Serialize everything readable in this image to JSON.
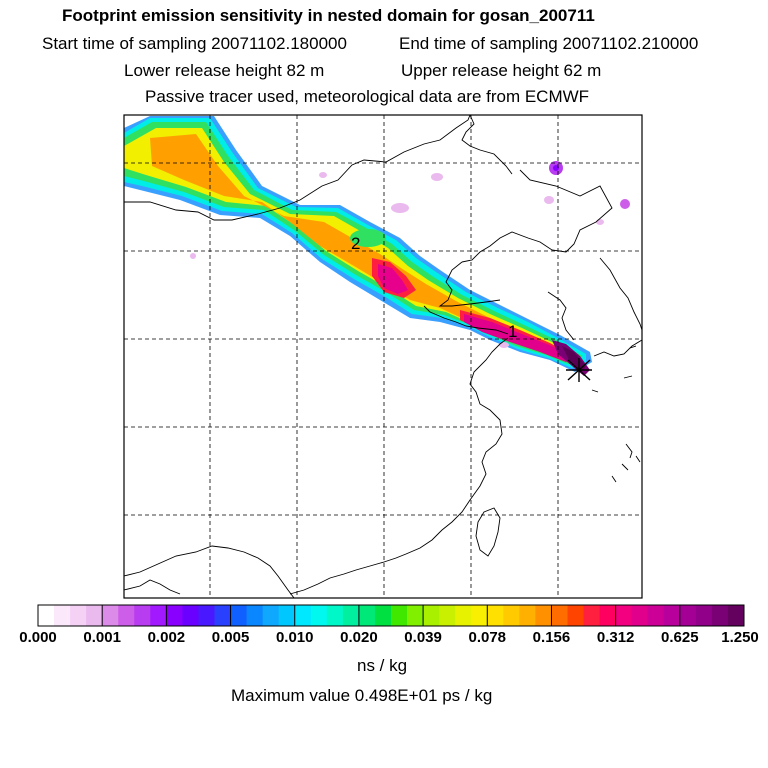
{
  "header": {
    "title": "Footprint emission sensitivity in nested domain for gosan_200711",
    "start_time": "Start time of sampling 20071102.180000",
    "end_time": "End time of sampling 20071102.210000",
    "lower_height": "Lower release height   82 m",
    "upper_height": "Upper release height   62 m",
    "tracer": "Passive tracer used, meteorological data are from ECMWF"
  },
  "map": {
    "point_labels": [
      "2",
      "1"
    ],
    "receptor_marker": "receptor-cross"
  },
  "colorbar": {
    "ticks": [
      "0.000",
      "0.001",
      "0.002",
      "0.005",
      "0.010",
      "0.020",
      "0.039",
      "0.078",
      "0.156",
      "0.312",
      "0.625",
      "1.250"
    ],
    "colors": [
      "#ffffff",
      "#fbe8fb",
      "#f5d2f5",
      "#eab9ee",
      "#dc8be8",
      "#cc5ee9",
      "#b83cf0",
      "#a218ff",
      "#8a00ff",
      "#6a00ff",
      "#4a18ff",
      "#2a40ff",
      "#1060ff",
      "#0a86ff",
      "#10a8ff",
      "#00c8ff",
      "#00e8ff",
      "#00f8ee",
      "#00f8c8",
      "#00f0a0",
      "#00e878",
      "#00e040",
      "#40e800",
      "#80f000",
      "#a8f000",
      "#c8f000",
      "#e6f200",
      "#f8f000",
      "#ffe000",
      "#ffca00",
      "#ffb000",
      "#ff9000",
      "#ff6c00",
      "#ff4400",
      "#ff2040",
      "#ff0060",
      "#f20080",
      "#e0008c",
      "#cc0096",
      "#b8009c",
      "#a40096",
      "#900088",
      "#7a0076",
      "#64005e"
    ],
    "unit": "ns / kg",
    "max_value": "Maximum value  0.498E+01 ps / kg"
  }
}
